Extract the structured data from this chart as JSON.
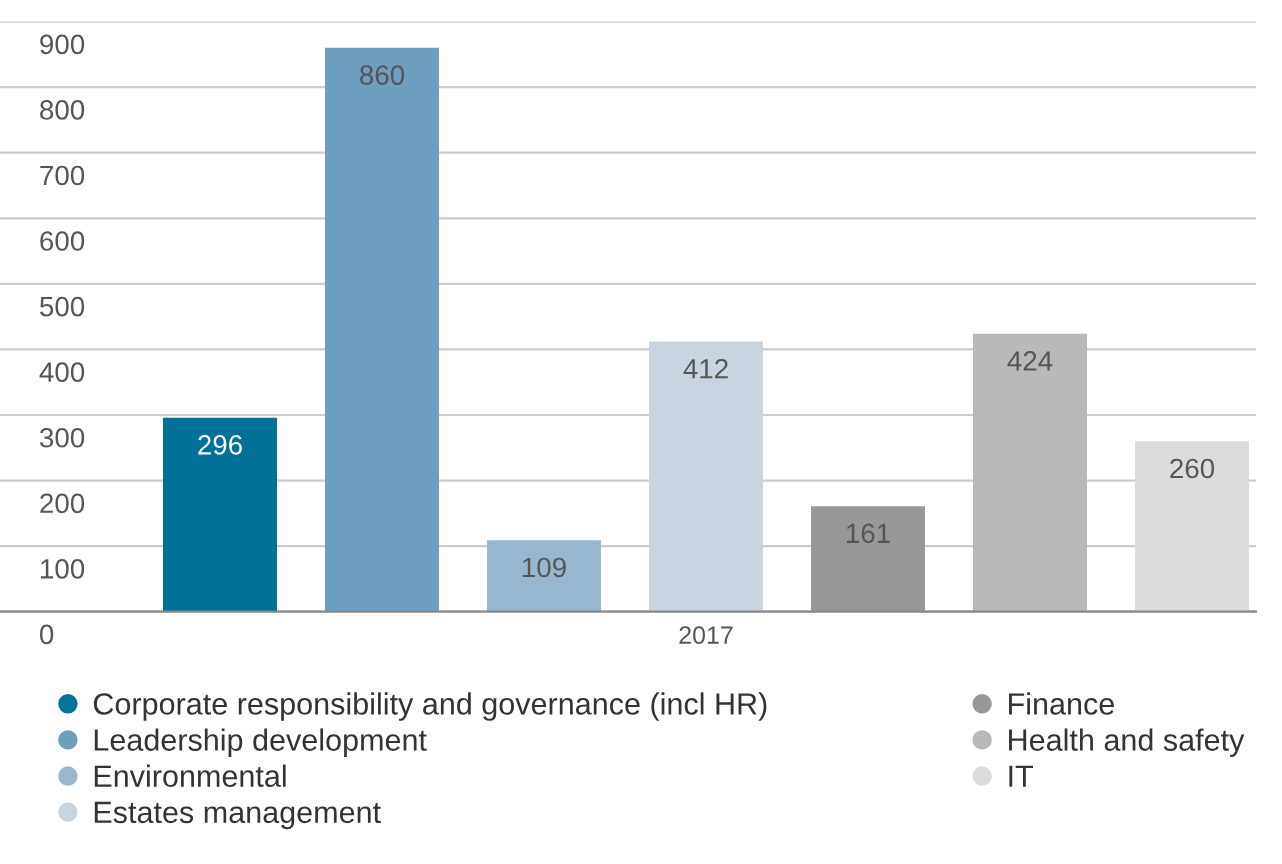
{
  "chart_data": {
    "type": "bar",
    "categories": [
      "2017"
    ],
    "series": [
      {
        "name": "Corporate responsibility and governance (incl HR)",
        "color": "#00729a",
        "values": [
          296
        ]
      },
      {
        "name": "Leadership development",
        "color": "#6d9fbf",
        "values": [
          860
        ]
      },
      {
        "name": "Environmental",
        "color": "#98b7cf",
        "values": [
          109
        ]
      },
      {
        "name": "Estates management",
        "color": "#c8d5e0",
        "values": [
          412
        ]
      },
      {
        "name": "Finance",
        "color": "#989898",
        "values": [
          161
        ]
      },
      {
        "name": "Health and safety",
        "color": "#b9b9b9",
        "values": [
          424
        ]
      },
      {
        "name": "IT",
        "color": "#dcdcdc",
        "values": [
          260
        ]
      }
    ],
    "ylim": [
      0,
      900
    ],
    "yticks": [
      0,
      100,
      200,
      300,
      400,
      500,
      600,
      700,
      800,
      900
    ],
    "grid": "y",
    "legend": "bottom",
    "data_labels": true
  }
}
